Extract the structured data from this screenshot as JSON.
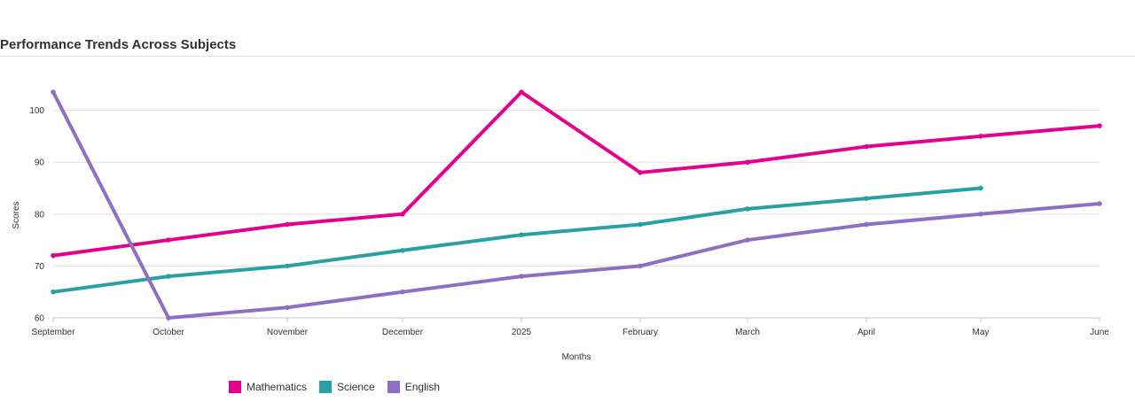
{
  "header": {
    "title": "Performance Trends Across Subjects"
  },
  "chart_data": {
    "type": "line",
    "title": "Performance Trends Across Subjects",
    "xlabel": "Months",
    "ylabel": "Scores",
    "categories": [
      "September",
      "October",
      "November",
      "December",
      "2025",
      "February",
      "March",
      "April",
      "May",
      "June"
    ],
    "ylim": [
      60,
      103.5
    ],
    "yticks": [
      60,
      70,
      80,
      90,
      100
    ],
    "grid": true,
    "legend_position": "bottom-left",
    "series": [
      {
        "name": "Mathematics",
        "color": "#e3008c",
        "values": [
          72,
          75,
          78,
          80,
          103.5,
          88,
          90,
          93,
          95,
          97
        ]
      },
      {
        "name": "Science",
        "color": "#2aa0a4",
        "values": [
          65,
          68,
          70,
          73,
          76,
          78,
          81,
          83,
          85,
          null
        ]
      },
      {
        "name": "English",
        "color": "#8f6fc1",
        "values": [
          103.5,
          60,
          62,
          65,
          68,
          70,
          75,
          78,
          80,
          82
        ]
      }
    ]
  }
}
